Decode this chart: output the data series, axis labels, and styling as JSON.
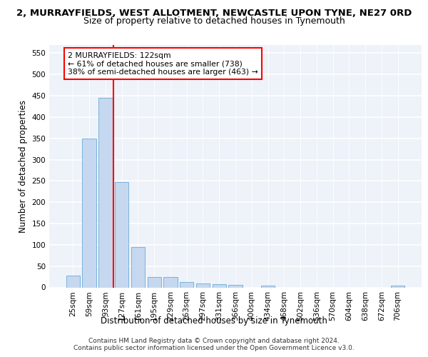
{
  "title_line1": "2, MURRAYFIELDS, WEST ALLOTMENT, NEWCASTLE UPON TYNE, NE27 0RD",
  "title_line2": "Size of property relative to detached houses in Tynemouth",
  "xlabel": "Distribution of detached houses by size in Tynemouth",
  "ylabel": "Number of detached properties",
  "categories": [
    "25sqm",
    "59sqm",
    "93sqm",
    "127sqm",
    "161sqm",
    "195sqm",
    "229sqm",
    "263sqm",
    "297sqm",
    "331sqm",
    "366sqm",
    "400sqm",
    "434sqm",
    "468sqm",
    "502sqm",
    "536sqm",
    "570sqm",
    "604sqm",
    "638sqm",
    "672sqm",
    "706sqm"
  ],
  "values": [
    27,
    349,
    445,
    247,
    94,
    25,
    25,
    13,
    10,
    8,
    6,
    0,
    5,
    0,
    0,
    0,
    0,
    0,
    0,
    0,
    5
  ],
  "bar_color": "#c5d8f0",
  "bar_edge_color": "#6aaad4",
  "annotation_text": "2 MURRAYFIELDS: 122sqm\n← 61% of detached houses are smaller (738)\n38% of semi-detached houses are larger (463) →",
  "annotation_box_color": "white",
  "annotation_box_edge": "red",
  "ylim": [
    0,
    570
  ],
  "yticks": [
    0,
    50,
    100,
    150,
    200,
    250,
    300,
    350,
    400,
    450,
    500,
    550
  ],
  "background_color": "#eef2f9",
  "grid_color": "white",
  "footer_line1": "Contains HM Land Registry data © Crown copyright and database right 2024.",
  "footer_line2": "Contains public sector information licensed under the Open Government Licence v3.0.",
  "title_fontsize": 9.5,
  "subtitle_fontsize": 9,
  "axis_label_fontsize": 8.5,
  "tick_fontsize": 7.5,
  "footer_fontsize": 6.5
}
